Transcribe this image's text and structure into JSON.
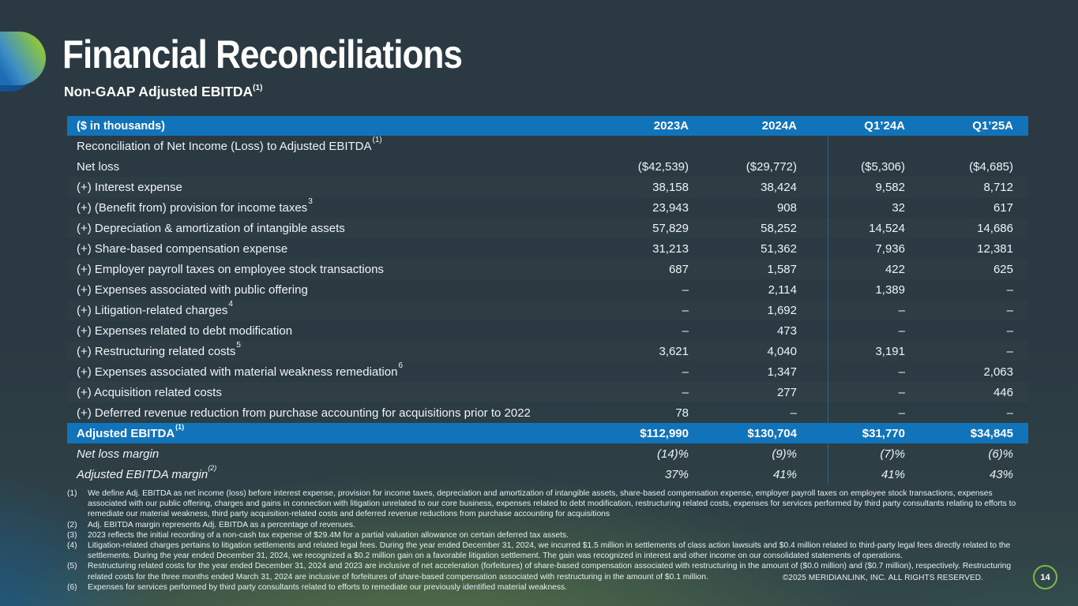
{
  "slide": {
    "title": "Financial Reconciliations",
    "subtitle": "Non-GAAP Adjusted EBITDA",
    "subtitle_sup": "(1)",
    "page_number": "14",
    "copyright": "©2025 MERIDIANLINK, INC. ALL RIGHTS RESERVED."
  },
  "colors": {
    "background": "#2b3942",
    "accent_blue": "#1173b9",
    "accent_green": "#7cb947",
    "logo_blue": "#1d6db6",
    "logo_green": "#8cc63f"
  },
  "table": {
    "unit_label": "($ in thousands)",
    "columns": [
      "2023A",
      "2024A",
      "Q1’24A",
      "Q1’25A"
    ],
    "section_header": {
      "label": "Reconciliation of Net Income (Loss) to Adjusted EBITDA",
      "sup": "(1)"
    },
    "rows": [
      {
        "label": "Net loss",
        "sup": "",
        "values": [
          "($42,539)",
          "($29,772)",
          "($5,306)",
          "($4,685)"
        ]
      },
      {
        "label": "(+) Interest expense",
        "sup": "",
        "values": [
          "38,158",
          "38,424",
          "9,582",
          "8,712"
        ]
      },
      {
        "label": "(+) (Benefit from) provision for income taxes",
        "sup": "3",
        "values": [
          "23,943",
          "908",
          "32",
          "617"
        ]
      },
      {
        "label": "(+) Depreciation & amortization of intangible assets",
        "sup": "",
        "values": [
          "57,829",
          "58,252",
          "14,524",
          "14,686"
        ]
      },
      {
        "label": "(+) Share-based compensation expense",
        "sup": "",
        "values": [
          "31,213",
          "51,362",
          "7,936",
          "12,381"
        ]
      },
      {
        "label": "(+) Employer payroll taxes on employee stock transactions",
        "sup": "",
        "values": [
          "687",
          "1,587",
          "422",
          "625"
        ]
      },
      {
        "label": "(+) Expenses associated with public offering",
        "sup": "",
        "values": [
          "–",
          "2,114",
          "1,389",
          "–"
        ]
      },
      {
        "label": "(+) Litigation-related charges",
        "sup": "4",
        "values": [
          "–",
          "1,692",
          "–",
          "–"
        ]
      },
      {
        "label": "(+) Expenses related to debt modification",
        "sup": "",
        "values": [
          "–",
          "473",
          "–",
          "–"
        ]
      },
      {
        "label": "(+) Restructuring related costs",
        "sup": "5",
        "values": [
          "3,621",
          "4,040",
          "3,191",
          "–"
        ]
      },
      {
        "label": "(+) Expenses associated with material weakness remediation",
        "sup": "6",
        "values": [
          "–",
          "1,347",
          "–",
          "2,063"
        ]
      },
      {
        "label": "(+) Acquisition related costs",
        "sup": "",
        "values": [
          "–",
          "277",
          "–",
          "446"
        ]
      },
      {
        "label": "(+) Deferred revenue reduction from purchase accounting for acquisitions prior to 2022",
        "sup": "",
        "values": [
          "78",
          "–",
          "–",
          "–"
        ]
      }
    ],
    "total_row": {
      "label": "Adjusted EBITDA",
      "sup": "(1)",
      "values": [
        "$112,990",
        "$130,704",
        "$31,770",
        "$34,845"
      ]
    },
    "margin_rows": [
      {
        "label": "Net loss margin",
        "sup": "",
        "values": [
          "(14)%",
          "(9)%",
          "(7)%",
          "(6)%"
        ]
      },
      {
        "label": "Adjusted EBITDA margin",
        "sup": "(2)",
        "values": [
          "37%",
          "41%",
          "41%",
          "43%"
        ]
      }
    ]
  },
  "footnotes": [
    {
      "num": "(1)",
      "text": "We define Adj. EBITDA as net income (loss) before interest expense, provision for income taxes, depreciation and amortization of intangible assets, share-based compensation expense, employer payroll taxes on employee stock transactions, expenses associated with our public offering, charges and gains in connection with litigation unrelated to our core business, expenses related to debt modification, restructuring related costs, expenses for services performed by third party consultants relating to efforts to remediate our material weakness, third party acquisition-related costs and deferred revenue reductions from purchase accounting for acquisitions"
    },
    {
      "num": "(2)",
      "text": "Adj. EBITDA margin represents Adj. EBITDA as a percentage of revenues."
    },
    {
      "num": "(3)",
      "text": "2023 reflects the initial recording of a non-cash tax expense of $29.4M for a partial valuation allowance on certain deferred tax assets."
    },
    {
      "num": "(4)",
      "text": "Litigation-related charges pertains to litigation settlements and related legal fees. During the year ended December 31, 2024, we incurred $1.5 million in settlements of class action lawsuits and $0.4 million related to third-party legal fees directly related to the settlements. During the year ended December 31, 2024, we recognized a $0.2 million gain on a favorable litigation settlement. The gain was recognized in interest and other income on our consolidated statements of operations."
    },
    {
      "num": "(5)",
      "text": "Restructuring related costs for the year ended December 31, 2024 and 2023 are inclusive of net acceleration (forfeitures) of share-based compensation associated with restructuring in the amount of ($0.0 million) and ($0.7 million), respectively. Restructuring related costs for the three months ended March 31, 2024 are inclusive of forfeitures of share-based compensation associated with restructuring in the amount of $0.1 million."
    },
    {
      "num": "(6)",
      "text": "Expenses for services performed by third party consultants related to efforts to remediate our previously identified material weakness."
    }
  ]
}
